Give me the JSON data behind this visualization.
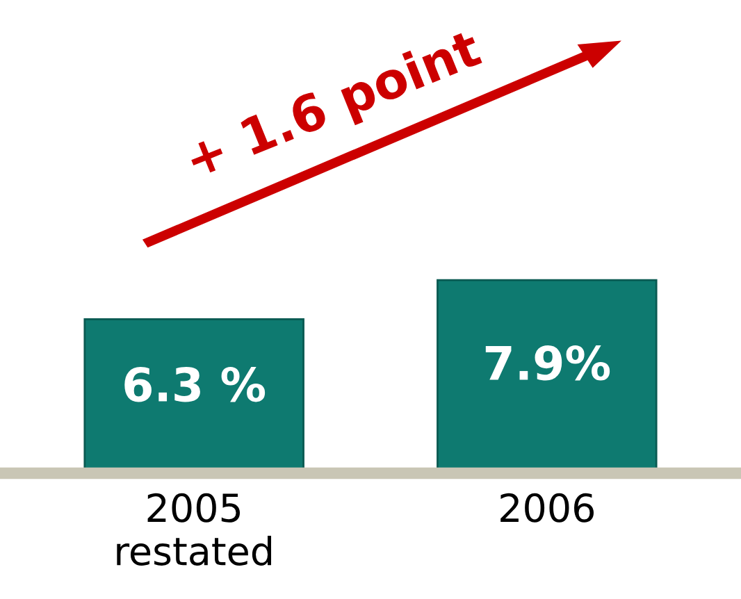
{
  "chart_data": {
    "type": "bar",
    "categories": [
      "2005\nrestated",
      "2006"
    ],
    "values": [
      6.3,
      7.9
    ],
    "value_labels": [
      "6.3 %",
      "7.9%"
    ],
    "color": "#0e7a70",
    "annotations": [
      "+ 1.6 point"
    ]
  }
}
